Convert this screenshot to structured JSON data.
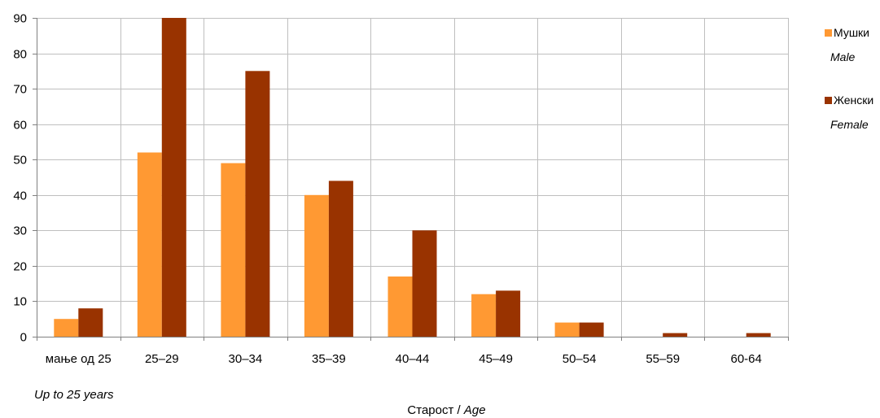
{
  "chart_data": {
    "type": "bar",
    "categories": [
      "мање од 25",
      "25–29",
      "30–34",
      "35–39",
      "40–44",
      "45–49",
      "50–54",
      "55–59",
      "60-64"
    ],
    "series": [
      {
        "name": "Мушки",
        "name_en": "Male",
        "color": "#FF9933",
        "values": [
          5,
          52,
          49,
          40,
          17,
          12,
          4,
          0,
          0
        ]
      },
      {
        "name": "Женски",
        "name_en": "Female",
        "color": "#993300",
        "values": [
          8,
          90,
          75,
          44,
          30,
          13,
          4,
          1,
          1
        ]
      }
    ],
    "ylim": [
      0,
      90
    ],
    "yticks": [
      0,
      10,
      20,
      30,
      40,
      50,
      60,
      70,
      80,
      90
    ],
    "xlabel": "Старост",
    "xlabel_en": "Age",
    "category_note": "Up to 25 years",
    "grid": true,
    "legend_position": "right"
  }
}
